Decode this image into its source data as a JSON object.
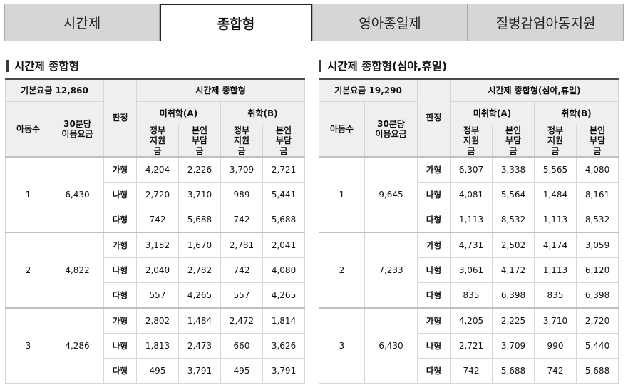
{
  "tabs": [
    {
      "label": "시간제",
      "active": false
    },
    {
      "label": "종합형",
      "active": true
    },
    {
      "label": "영아종일제",
      "active": false
    },
    {
      "label": "질병감염아동지원",
      "active": false
    }
  ],
  "tables": [
    {
      "title": "시간제 종합형",
      "base_fee": "기본요금 12,860",
      "group_header": "시간제 종합형",
      "headers": {
        "child_count": "아동수",
        "fee30": "30분당 이용요금",
        "judge": "판정",
        "sub_a": "미취학(A)",
        "sub_b": "취학(B)",
        "gov": "정부 지원금",
        "self": "본인 부담금"
      },
      "groups": [
        {
          "children": "1",
          "fee30": "6,430",
          "rows": [
            {
              "type": "가형",
              "a_gov": "4,204",
              "a_self": "2,226",
              "b_gov": "3,709",
              "b_self": "2,721"
            },
            {
              "type": "나형",
              "a_gov": "2,720",
              "a_self": "3,710",
              "b_gov": "989",
              "b_self": "5,441"
            },
            {
              "type": "다형",
              "a_gov": "742",
              "a_self": "5,688",
              "b_gov": "742",
              "b_self": "5,688"
            }
          ]
        },
        {
          "children": "2",
          "fee30": "4,822",
          "rows": [
            {
              "type": "가형",
              "a_gov": "3,152",
              "a_self": "1,670",
              "b_gov": "2,781",
              "b_self": "2,041"
            },
            {
              "type": "나형",
              "a_gov": "2,040",
              "a_self": "2,782",
              "b_gov": "742",
              "b_self": "4,080"
            },
            {
              "type": "다형",
              "a_gov": "557",
              "a_self": "4,265",
              "b_gov": "557",
              "b_self": "4,265"
            }
          ]
        },
        {
          "children": "3",
          "fee30": "4,286",
          "rows": [
            {
              "type": "가형",
              "a_gov": "2,802",
              "a_self": "1,484",
              "b_gov": "2,472",
              "b_self": "1,814"
            },
            {
              "type": "나형",
              "a_gov": "1,813",
              "a_self": "2,473",
              "b_gov": "660",
              "b_self": "3,626"
            },
            {
              "type": "다형",
              "a_gov": "495",
              "a_self": "3,791",
              "b_gov": "495",
              "b_self": "3,791"
            }
          ]
        }
      ]
    },
    {
      "title": "시간제 종합형(심야,휴일)",
      "base_fee": "기본요금 19,290",
      "group_header": "시간제 종합형(심야,휴일)",
      "headers": {
        "child_count": "아동수",
        "fee30": "30분당 이용요금",
        "judge": "판정",
        "sub_a": "미취학(A)",
        "sub_b": "취학(B)",
        "gov": "정부 지원금",
        "self": "본인 부담금"
      },
      "groups": [
        {
          "children": "1",
          "fee30": "9,645",
          "rows": [
            {
              "type": "가형",
              "a_gov": "6,307",
              "a_self": "3,338",
              "b_gov": "5,565",
              "b_self": "4,080"
            },
            {
              "type": "나형",
              "a_gov": "4,081",
              "a_self": "5,564",
              "b_gov": "1,484",
              "b_self": "8,161"
            },
            {
              "type": "다형",
              "a_gov": "1,113",
              "a_self": "8,532",
              "b_gov": "1,113",
              "b_self": "8,532"
            }
          ]
        },
        {
          "children": "2",
          "fee30": "7,233",
          "rows": [
            {
              "type": "가형",
              "a_gov": "4,731",
              "a_self": "2,502",
              "b_gov": "4,174",
              "b_self": "3,059"
            },
            {
              "type": "나형",
              "a_gov": "3,061",
              "a_self": "4,172",
              "b_gov": "1,113",
              "b_self": "6,120"
            },
            {
              "type": "다형",
              "a_gov": "835",
              "a_self": "6,398",
              "b_gov": "835",
              "b_self": "6,398"
            }
          ]
        },
        {
          "children": "3",
          "fee30": "6,430",
          "rows": [
            {
              "type": "가형",
              "a_gov": "4,205",
              "a_self": "2,225",
              "b_gov": "3,710",
              "b_self": "2,720"
            },
            {
              "type": "나형",
              "a_gov": "2,721",
              "a_self": "3,709",
              "b_gov": "990",
              "b_self": "5,440"
            },
            {
              "type": "다형",
              "a_gov": "742",
              "a_self": "5,688",
              "b_gov": "742",
              "b_self": "5,688"
            }
          ]
        }
      ]
    }
  ]
}
